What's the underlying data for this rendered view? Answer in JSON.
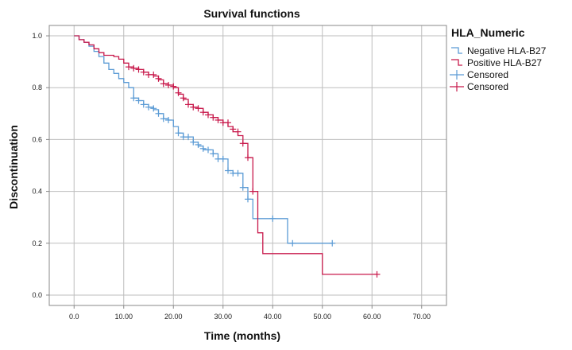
{
  "chart_data": {
    "type": "line",
    "title": "Survival functions",
    "xlabel": "Time (months)",
    "ylabel": "Discontinuation",
    "xlim": [
      -5,
      75
    ],
    "ylim": [
      -0.04,
      1.04
    ],
    "x_ticks": [
      0,
      10,
      20,
      30,
      40,
      50,
      60,
      70
    ],
    "x_tick_labels": [
      "0.0",
      "10.00",
      "20.00",
      "30.00",
      "40.00",
      "50.00",
      "60.00",
      "70.00"
    ],
    "y_ticks": [
      0,
      0.2,
      0.4,
      0.6,
      0.8,
      1.0
    ],
    "y_tick_labels": [
      "0.0",
      "0.2",
      "0.4",
      "0.6",
      "0.8",
      "1.0"
    ],
    "grid": true,
    "legend_position": "top-right",
    "legend_title": "HLA_Numeric",
    "legend": [
      {
        "label": "Negative HLA-B27",
        "symbol": "step",
        "color": "#5b9bd5"
      },
      {
        "label": "Positive HLA-B27",
        "symbol": "step",
        "color": "#c8194b"
      },
      {
        "label": "Censored",
        "symbol": "plus",
        "color": "#5b9bd5"
      },
      {
        "label": "Censored",
        "symbol": "plus",
        "color": "#c8194b"
      }
    ],
    "series": [
      {
        "group": "Negative HLA-B27",
        "color": "#5b9bd5",
        "steps": [
          [
            0,
            1.0
          ],
          [
            1,
            0.985
          ],
          [
            2,
            0.975
          ],
          [
            3,
            0.96
          ],
          [
            4,
            0.94
          ],
          [
            5,
            0.92
          ],
          [
            6,
            0.895
          ],
          [
            7,
            0.87
          ],
          [
            8,
            0.855
          ],
          [
            9,
            0.835
          ],
          [
            10,
            0.82
          ],
          [
            11,
            0.8
          ],
          [
            12,
            0.76
          ],
          [
            13,
            0.75
          ],
          [
            14,
            0.735
          ],
          [
            15,
            0.725
          ],
          [
            16,
            0.715
          ],
          [
            17,
            0.7
          ],
          [
            18,
            0.68
          ],
          [
            19,
            0.675
          ],
          [
            20,
            0.65
          ],
          [
            21,
            0.625
          ],
          [
            22,
            0.61
          ],
          [
            24,
            0.59
          ],
          [
            25,
            0.575
          ],
          [
            26,
            0.56
          ],
          [
            28,
            0.545
          ],
          [
            29,
            0.525
          ],
          [
            31,
            0.48
          ],
          [
            32,
            0.47
          ],
          [
            34,
            0.415
          ],
          [
            35,
            0.37
          ],
          [
            36,
            0.295
          ],
          [
            43,
            0.2
          ],
          [
            52,
            0.2
          ]
        ],
        "censored": [
          [
            12,
            0.76
          ],
          [
            13,
            0.75
          ],
          [
            14,
            0.735
          ],
          [
            15,
            0.725
          ],
          [
            16,
            0.72
          ],
          [
            17,
            0.7
          ],
          [
            18,
            0.68
          ],
          [
            19,
            0.675
          ],
          [
            21,
            0.625
          ],
          [
            22,
            0.61
          ],
          [
            23,
            0.61
          ],
          [
            24,
            0.59
          ],
          [
            25,
            0.58
          ],
          [
            26,
            0.565
          ],
          [
            27,
            0.56
          ],
          [
            28,
            0.545
          ],
          [
            29,
            0.525
          ],
          [
            30,
            0.525
          ],
          [
            31,
            0.48
          ],
          [
            32,
            0.47
          ],
          [
            33,
            0.47
          ],
          [
            34,
            0.415
          ],
          [
            35,
            0.37
          ],
          [
            40,
            0.295
          ],
          [
            44,
            0.2
          ],
          [
            52,
            0.2
          ]
        ]
      },
      {
        "group": "Positive HLA-B27",
        "color": "#c8194b",
        "steps": [
          [
            0,
            1.0
          ],
          [
            1,
            0.985
          ],
          [
            2,
            0.975
          ],
          [
            3,
            0.965
          ],
          [
            4,
            0.95
          ],
          [
            5,
            0.935
          ],
          [
            6,
            0.925
          ],
          [
            8,
            0.92
          ],
          [
            9,
            0.91
          ],
          [
            10,
            0.895
          ],
          [
            11,
            0.88
          ],
          [
            12,
            0.875
          ],
          [
            13,
            0.87
          ],
          [
            14,
            0.86
          ],
          [
            15,
            0.85
          ],
          [
            16,
            0.845
          ],
          [
            17,
            0.83
          ],
          [
            18,
            0.815
          ],
          [
            19,
            0.81
          ],
          [
            20,
            0.8
          ],
          [
            21,
            0.775
          ],
          [
            22,
            0.755
          ],
          [
            23,
            0.735
          ],
          [
            24,
            0.725
          ],
          [
            25,
            0.72
          ],
          [
            26,
            0.705
          ],
          [
            27,
            0.695
          ],
          [
            28,
            0.685
          ],
          [
            29,
            0.675
          ],
          [
            30,
            0.665
          ],
          [
            31,
            0.65
          ],
          [
            32,
            0.63
          ],
          [
            33,
            0.615
          ],
          [
            34,
            0.585
          ],
          [
            35,
            0.53
          ],
          [
            36,
            0.4
          ],
          [
            37,
            0.24
          ],
          [
            38,
            0.16
          ],
          [
            50,
            0.08
          ],
          [
            61,
            0.08
          ]
        ],
        "censored": [
          [
            11,
            0.88
          ],
          [
            12,
            0.875
          ],
          [
            13,
            0.87
          ],
          [
            14,
            0.86
          ],
          [
            15,
            0.85
          ],
          [
            16,
            0.85
          ],
          [
            17,
            0.835
          ],
          [
            18,
            0.815
          ],
          [
            19,
            0.81
          ],
          [
            20,
            0.805
          ],
          [
            21,
            0.78
          ],
          [
            22,
            0.76
          ],
          [
            23,
            0.735
          ],
          [
            24,
            0.725
          ],
          [
            25,
            0.72
          ],
          [
            26,
            0.705
          ],
          [
            27,
            0.695
          ],
          [
            28,
            0.685
          ],
          [
            29,
            0.675
          ],
          [
            30,
            0.665
          ],
          [
            31,
            0.665
          ],
          [
            32,
            0.64
          ],
          [
            33,
            0.63
          ],
          [
            34,
            0.585
          ],
          [
            35,
            0.53
          ],
          [
            36,
            0.4
          ],
          [
            61,
            0.08
          ]
        ]
      }
    ]
  }
}
